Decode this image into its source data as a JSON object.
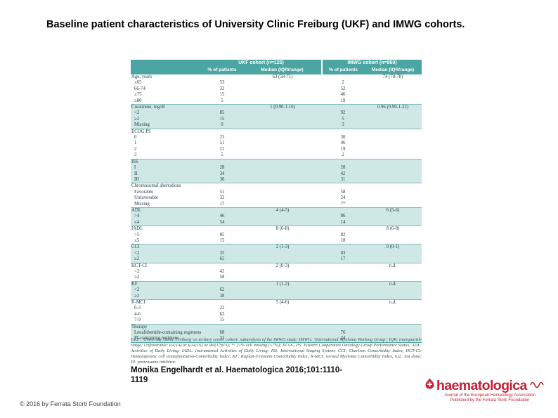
{
  "slide": {
    "title": "Baseline patient characteristics of University Clinic Freiburg (UKF) and IMWG cohorts.",
    "citation_line1": "Monika Engelhardt et al. Haematologica 2016;101:1110-",
    "citation_line2": "1119",
    "copyright": "© 2016 by Ferrata Storti Foundation"
  },
  "logo": {
    "wordmark": "haematologica",
    "tagline_line1": "Journal of the European Hematology Association",
    "tagline_line2": "Published by the Ferrata Storti Foundation",
    "icon": "blood-drop-icon",
    "brand_color": "#C42032"
  },
  "table": {
    "colors": {
      "header_bg": "#4BA6A3",
      "band_bg": "#CFE8E6",
      "header_text": "#FFFFFF",
      "body_text": "#1C3D3C"
    },
    "col_groups": [
      {
        "label": "UKF cohort (n=125)"
      },
      {
        "label": "IMWG cohort (n=869)"
      }
    ],
    "sub_headers": [
      "% of patients",
      "Median (IQR/range)",
      "% of patients",
      "Median (IQR/range)"
    ],
    "sections": [
      {
        "name": "age",
        "rows": [
          {
            "label": "Age, years",
            "ukf_pct": "",
            "ukf_median": "63 (58-71)",
            "imwg_pct": "",
            "imwg_median": "74 (70-78)"
          },
          {
            "label": "≤65",
            "ukf_pct": "53",
            "ukf_median": "",
            "imwg_pct": "2",
            "imwg_median": ""
          },
          {
            "label": "66-74",
            "ukf_pct": "32",
            "ukf_median": "",
            "imwg_pct": "52",
            "imwg_median": ""
          },
          {
            "label": "≥75",
            "ukf_pct": "15",
            "ukf_median": "",
            "imwg_pct": "46",
            "imwg_median": ""
          },
          {
            "label": "≥80",
            "ukf_pct": "5",
            "ukf_median": "",
            "imwg_pct": "19",
            "imwg_median": ""
          }
        ]
      },
      {
        "name": "creatinine",
        "rows": [
          {
            "label": "Creatinine, mg/dl",
            "ukf_pct": "",
            "ukf_median": "1 (0.90-1.10)",
            "imwg_pct": "",
            "imwg_median": "0.96 (0.90-1.22)"
          },
          {
            "label": "<2",
            "ukf_pct": "85",
            "ukf_median": "",
            "imwg_pct": "92",
            "imwg_median": ""
          },
          {
            "label": "≥2",
            "ukf_pct": "15",
            "ukf_median": "",
            "imwg_pct": "5",
            "imwg_median": ""
          },
          {
            "label": "Missing",
            "ukf_pct": "0",
            "ukf_median": "",
            "imwg_pct": "3",
            "imwg_median": ""
          }
        ]
      },
      {
        "name": "ecog-ps",
        "rows": [
          {
            "label": "ECOG PS",
            "ukf_pct": "",
            "ukf_median": "",
            "imwg_pct": "",
            "imwg_median": ""
          },
          {
            "label": "0",
            "ukf_pct": "23",
            "ukf_median": "",
            "imwg_pct": "30",
            "imwg_median": ""
          },
          {
            "label": "1",
            "ukf_pct": "51",
            "ukf_median": "",
            "imwg_pct": "46",
            "imwg_median": ""
          },
          {
            "label": "2",
            "ukf_pct": "21",
            "ukf_median": "",
            "imwg_pct": "19",
            "imwg_median": ""
          },
          {
            "label": "3",
            "ukf_pct": "5",
            "ukf_median": "",
            "imwg_pct": "2",
            "imwg_median": ""
          }
        ]
      },
      {
        "name": "iss",
        "rows": [
          {
            "label": "ISS",
            "ukf_pct": "",
            "ukf_median": "",
            "imwg_pct": "",
            "imwg_median": ""
          },
          {
            "label": "I",
            "ukf_pct": "28",
            "ukf_median": "",
            "imwg_pct": "28",
            "imwg_median": ""
          },
          {
            "label": "II",
            "ukf_pct": "34",
            "ukf_median": "",
            "imwg_pct": "42",
            "imwg_median": ""
          },
          {
            "label": "III",
            "ukf_pct": "38",
            "ukf_median": "",
            "imwg_pct": "31",
            "imwg_median": ""
          }
        ]
      },
      {
        "name": "chromosomal-aberrations",
        "rows": [
          {
            "label": "Chromosomal aberrations",
            "ukf_pct": "",
            "ukf_median": "",
            "imwg_pct": "",
            "imwg_median": ""
          },
          {
            "label": "Favorable",
            "ukf_pct": "51",
            "ukf_median": "",
            "imwg_pct": "58",
            "imwg_median": ""
          },
          {
            "label": "Unfavorable",
            "ukf_pct": "32",
            "ukf_median": "",
            "imwg_pct": "24",
            "imwg_median": ""
          },
          {
            "label": "Missing",
            "ukf_pct": "17",
            "ukf_median": "",
            "imwg_pct": "7*",
            "imwg_median": ""
          }
        ]
      },
      {
        "name": "adl",
        "rows": [
          {
            "label": "ADL",
            "ukf_pct": "",
            "ukf_median": "4 (4-5)",
            "imwg_pct": "",
            "imwg_median": "6 (5-6)"
          },
          {
            "label": ">4",
            "ukf_pct": "46",
            "ukf_median": "",
            "imwg_pct": "86",
            "imwg_median": ""
          },
          {
            "label": "≤4",
            "ukf_pct": "54",
            "ukf_median": "",
            "imwg_pct": "14",
            "imwg_median": ""
          }
        ]
      },
      {
        "name": "iadl",
        "rows": [
          {
            "label": "IADL",
            "ukf_pct": "",
            "ukf_median": "8 (6-8)",
            "imwg_pct": "",
            "imwg_median": "8 (6-8)"
          },
          {
            "label": ">5",
            "ukf_pct": "85",
            "ukf_median": "",
            "imwg_pct": "82",
            "imwg_median": ""
          },
          {
            "label": "≤5",
            "ukf_pct": "15",
            "ukf_median": "",
            "imwg_pct": "18",
            "imwg_median": ""
          }
        ]
      },
      {
        "name": "cci",
        "rows": [
          {
            "label": "CCI",
            "ukf_pct": "",
            "ukf_median": "2 (1-3)",
            "imwg_pct": "",
            "imwg_median": "0 (0-1)"
          },
          {
            "label": "<2",
            "ukf_pct": "35",
            "ukf_median": "",
            "imwg_pct": "83",
            "imwg_median": ""
          },
          {
            "label": "≥2",
            "ukf_pct": "65",
            "ukf_median": "",
            "imwg_pct": "17",
            "imwg_median": ""
          }
        ]
      },
      {
        "name": "hct-ci",
        "rows": [
          {
            "label": "HCT-CI",
            "ukf_pct": "",
            "ukf_median": "2 (0-3)",
            "imwg_pct": "",
            "imwg_median": "n.d."
          },
          {
            "label": "<2",
            "ukf_pct": "42",
            "ukf_median": "",
            "imwg_pct": "",
            "imwg_median": ""
          },
          {
            "label": "≥2",
            "ukf_pct": "58",
            "ukf_median": "",
            "imwg_pct": "",
            "imwg_median": ""
          }
        ]
      },
      {
        "name": "kf",
        "rows": [
          {
            "label": "KF",
            "ukf_pct": "",
            "ukf_median": "1 (1-2)",
            "imwg_pct": "",
            "imwg_median": "n.d."
          },
          {
            "label": "<2",
            "ukf_pct": "62",
            "ukf_median": "",
            "imwg_pct": "",
            "imwg_median": ""
          },
          {
            "label": "≥2",
            "ukf_pct": "38",
            "ukf_median": "",
            "imwg_pct": "",
            "imwg_median": ""
          }
        ]
      },
      {
        "name": "r-mci",
        "rows": [
          {
            "label": "R-MCI",
            "ukf_pct": "",
            "ukf_median": "5 (4-6)",
            "imwg_pct": "",
            "imwg_median": "n.d."
          },
          {
            "label": "0-3",
            "ukf_pct": "22",
            "ukf_median": "",
            "imwg_pct": "",
            "imwg_median": ""
          },
          {
            "label": "4-6",
            "ukf_pct": "63",
            "ukf_median": "",
            "imwg_pct": "",
            "imwg_median": ""
          },
          {
            "label": "7-9",
            "ukf_pct": "15",
            "ukf_median": "",
            "imwg_pct": "",
            "imwg_median": ""
          }
        ]
      },
      {
        "name": "therapy",
        "rows": [
          {
            "label": "Therapy",
            "ukf_pct": "",
            "ukf_median": "",
            "imwg_pct": "",
            "imwg_median": ""
          },
          {
            "label": "Lenalidomide-containing regimens",
            "ukf_pct": "68",
            "ukf_median": "",
            "imwg_pct": "76",
            "imwg_median": ""
          },
          {
            "label": "PI-containing regimens",
            "ukf_pct": "32",
            "ukf_median": "",
            "imwg_pct": "24",
            "imwg_median": ""
          }
        ]
      }
    ],
    "footnote": "UKF: 'University Clinic Freiburg' as tertiary center cohort: subanalysis of the IMWG study; IMWG: 'International Myeloma Working Group'; IQR: interquartile range; Unfavorable: t(4;14) or t(14;16) or del(17p13); *: 21% cell missing (≤7%); ECOG PS: Eastern Cooperative Oncology Group Performance Status; ADL: Activities of Daily Living; IADL: instrumental Activities of Daily Living; ISS: International Staging System; CCI: Charlson Comorbidity Index; HCT-CI: Hematopoietic cell transplantation-Comorbidity Index; KF: Kaplan-Feinstein Comorbidity Index; R-MCI: revised Myeloma Comorbidity Index; n.d.: not done; PI: proteasome inhibitor."
  }
}
